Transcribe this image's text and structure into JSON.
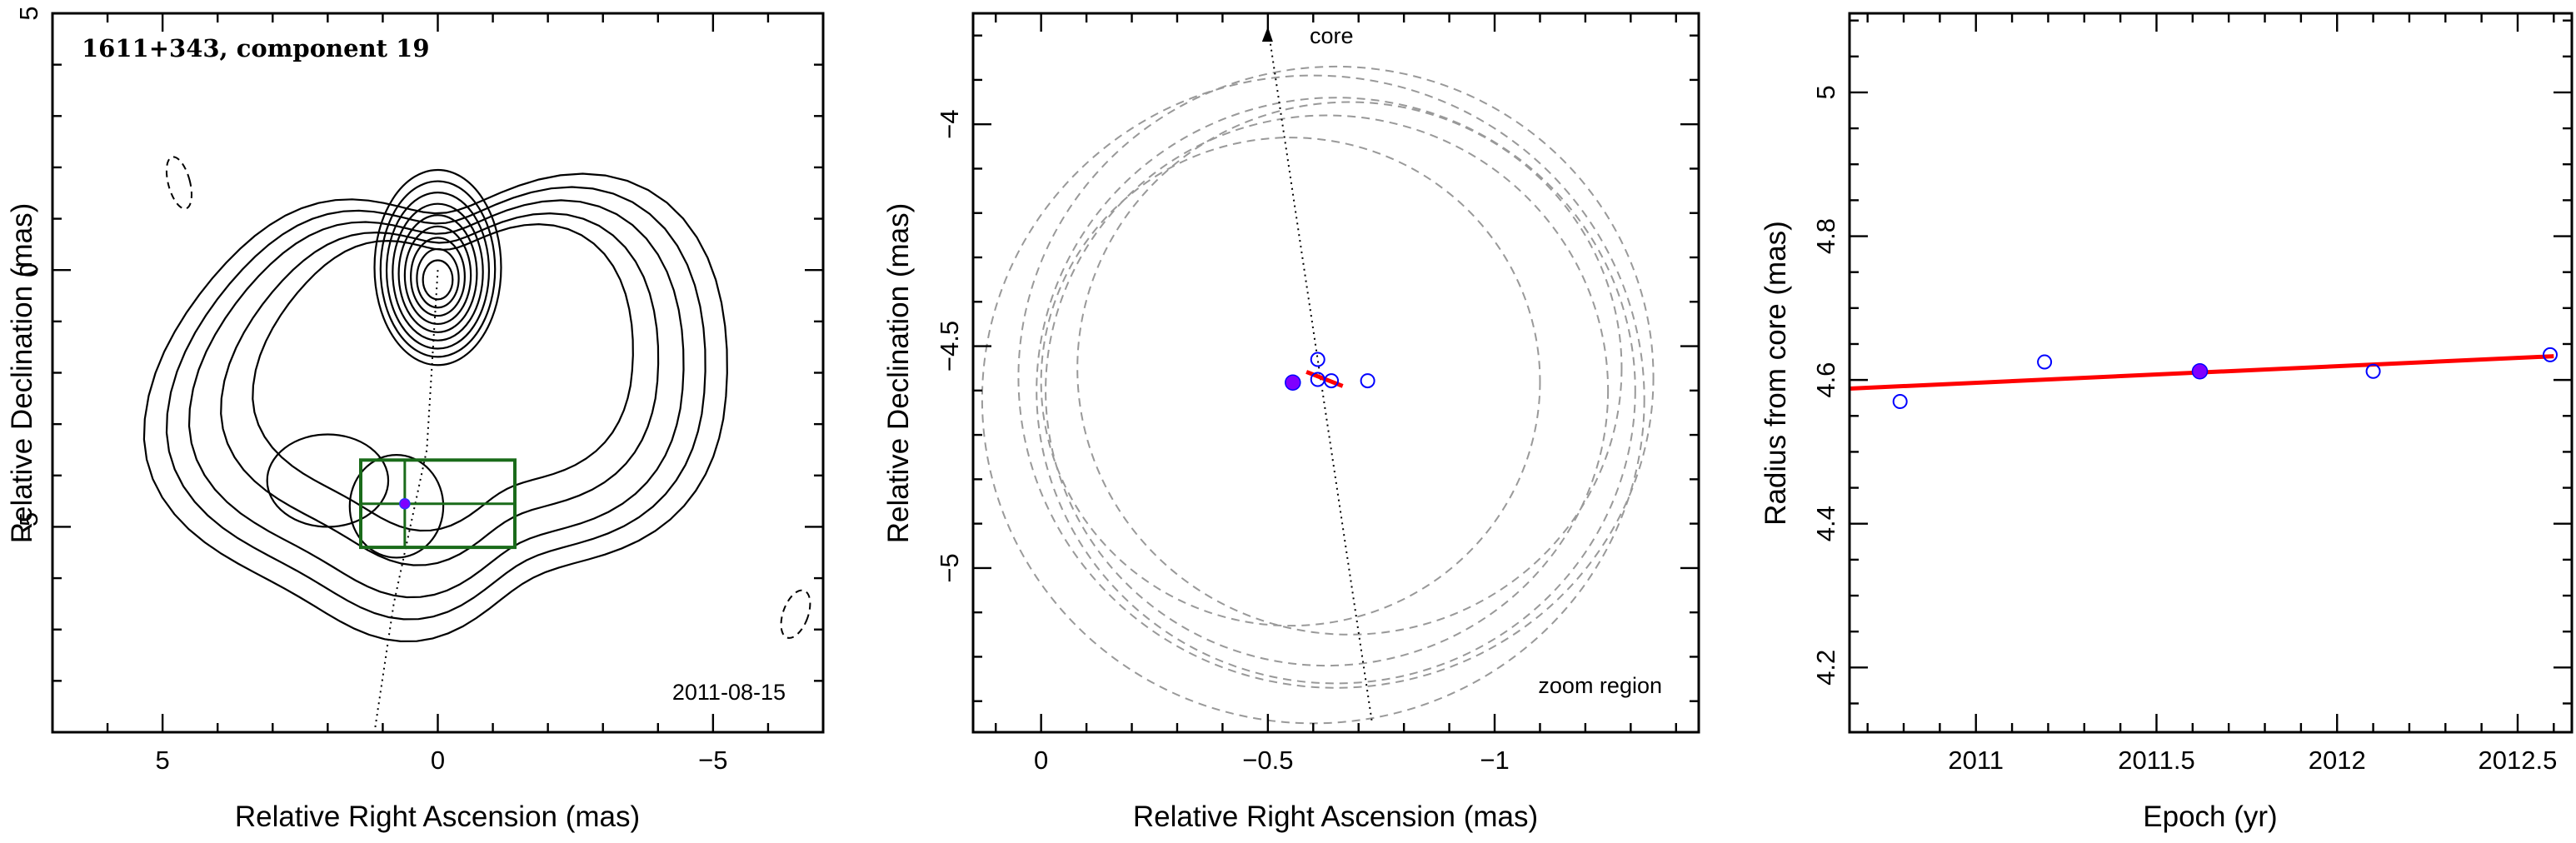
{
  "chart_data": [
    {
      "type": "contour",
      "title": "1611+343, component 19",
      "annotation": "2011-08-15",
      "xlabel": "Relative Right Ascension (mas)",
      "ylabel": "Relative Declination (mas)",
      "xlim": [
        7,
        -7
      ],
      "ylim": [
        -9,
        5
      ],
      "xticks": [
        5,
        0,
        -5
      ],
      "yticks": [
        5,
        0,
        -5
      ],
      "core_ridge": [
        [
          0,
          0
        ],
        [
          0.2,
          -3.5
        ],
        [
          0.8,
          -6.5
        ],
        [
          1.15,
          -9.0
        ]
      ],
      "component": {
        "x": 0.6,
        "y": -4.55
      },
      "zoom_box": {
        "x": [
          1.4,
          -1.4
        ],
        "y": [
          -3.7,
          -5.4
        ]
      },
      "contour_color": "#000000",
      "box_color": "#1a6b1a"
    },
    {
      "type": "scatter",
      "annotation_top": "core",
      "annotation_bottom": "zoom region",
      "xlabel": "Relative Right Ascension (mas)",
      "ylabel": "Relative Declination (mas)",
      "xlim": [
        0.15,
        -1.45
      ],
      "ylim": [
        -5.37,
        -3.75
      ],
      "xticks": [
        0,
        -0.5,
        -1
      ],
      "yticks": [
        -4,
        -4.5,
        -5
      ],
      "ridge": [
        [
          -0.5,
          -3.78
        ],
        [
          -0.73,
          -5.35
        ]
      ],
      "circles": [
        {
          "x": -0.6,
          "y": -4.62,
          "r": 0.73
        },
        {
          "x": -0.65,
          "y": -4.57,
          "r": 0.7
        },
        {
          "x": -0.65,
          "y": -4.6,
          "r": 0.66
        },
        {
          "x": -0.63,
          "y": -4.6,
          "r": 0.62
        },
        {
          "x": -0.68,
          "y": -4.55,
          "r": 0.6
        },
        {
          "x": -0.55,
          "y": -4.58,
          "r": 0.55
        }
      ],
      "points_open": [
        {
          "x": -0.61,
          "y": -4.53
        },
        {
          "x": -0.61,
          "y": -4.575
        },
        {
          "x": -0.64,
          "y": -4.578
        },
        {
          "x": -0.72,
          "y": -4.578
        }
      ],
      "point_filled": {
        "x": -0.555,
        "y": -4.582
      },
      "fit_segment": [
        [
          -0.585,
          -4.558
        ],
        [
          -0.665,
          -4.59
        ]
      ],
      "point_color": "#0000ff",
      "filled_color": "#7f00ff",
      "fit_color": "#ff0000",
      "circle_color": "#999999"
    },
    {
      "type": "scatter",
      "xlabel": "Epoch (yr)",
      "ylabel": "Radius from core (mas)",
      "xlim": [
        2010.65,
        2012.65
      ],
      "ylim": [
        4.11,
        5.11
      ],
      "xticks": [
        2011,
        2011.5,
        2012,
        2012.5
      ],
      "yticks": [
        4.2,
        4.4,
        4.6,
        4.8,
        5
      ],
      "points_open": [
        {
          "x": 2010.79,
          "y": 4.57
        },
        {
          "x": 2011.19,
          "y": 4.625
        },
        {
          "x": 2012.1,
          "y": 4.612
        },
        {
          "x": 2012.59,
          "y": 4.635
        }
      ],
      "point_filled": {
        "x": 2011.62,
        "y": 4.612
      },
      "fit_line": {
        "x": [
          2010.65,
          2012.6
        ],
        "y": [
          4.588,
          4.633
        ]
      },
      "point_color": "#0000ff",
      "filled_color": "#7f00ff",
      "fit_color": "#ff0000"
    }
  ]
}
